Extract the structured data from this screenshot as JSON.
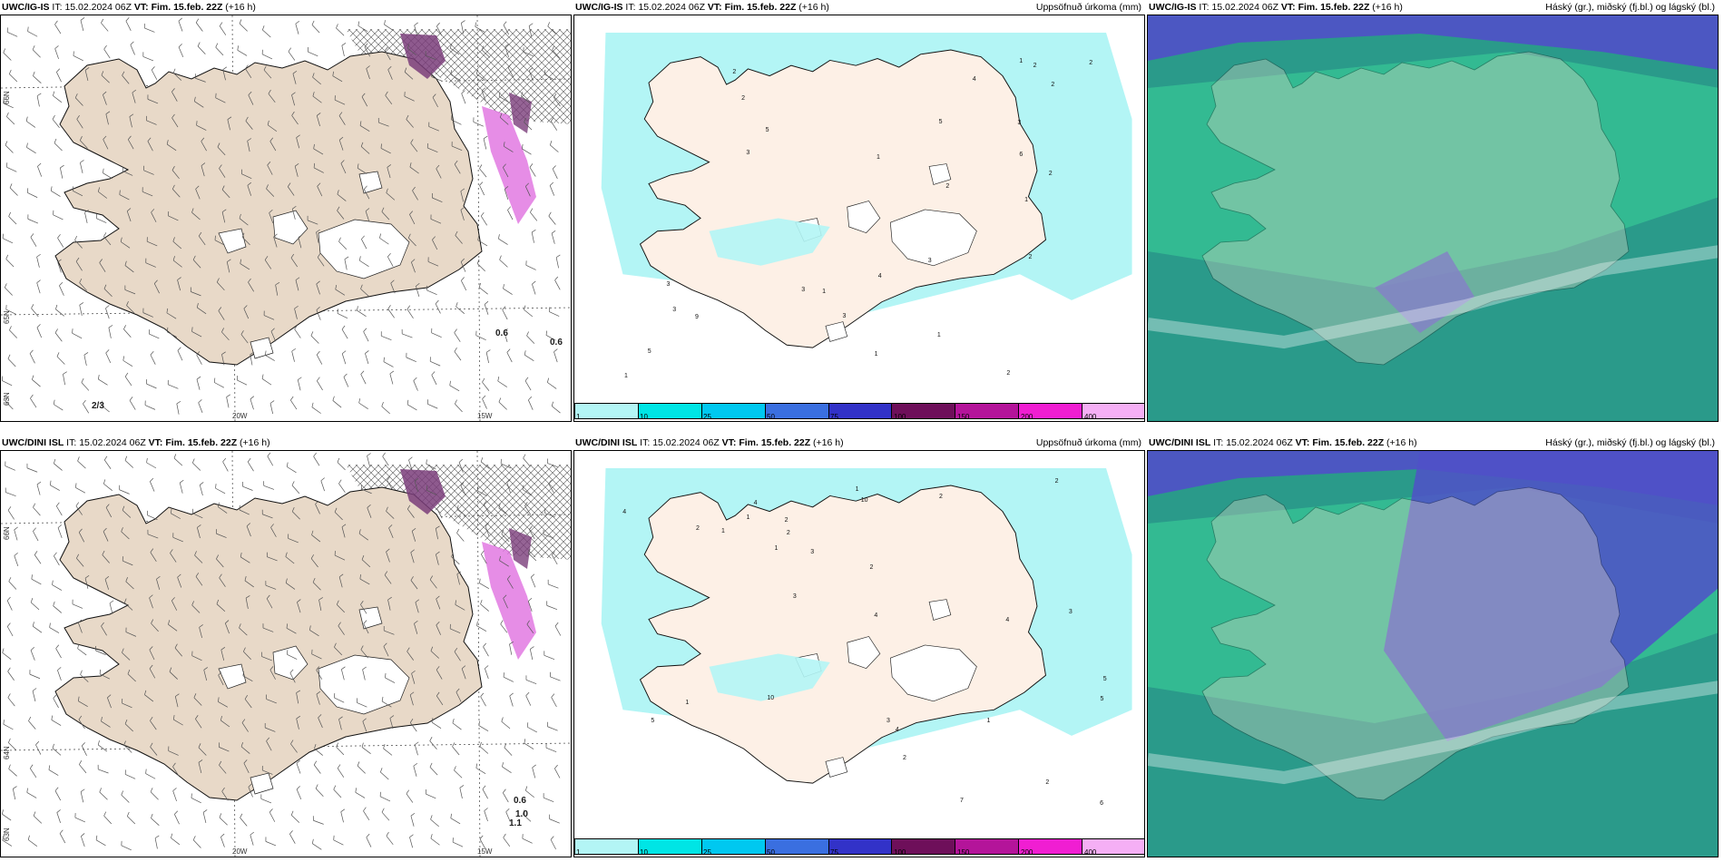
{
  "panels": [
    {
      "model": "UWC/IG-IS",
      "it_label": "IT:",
      "it_value": "15.02.2024 06Z",
      "vt_label": "VT:",
      "vt_value": "Fim. 15.feb. 22Z",
      "lead": "(+16 h)",
      "right_title": "",
      "type": "wind",
      "labels": [
        "0.6",
        "0.6",
        "2/3"
      ],
      "lon_ticks": [
        "20W",
        "15W"
      ],
      "lat_ticks": [
        "66N",
        "65N",
        "63N"
      ]
    },
    {
      "model": "UWC/IG-IS",
      "it_label": "IT:",
      "it_value": "15.02.2024 06Z",
      "vt_label": "VT:",
      "vt_value": "Fim. 15.feb. 22Z",
      "lead": "(+16 h)",
      "right_title": "Uppsöfnuð úrkoma (mm)",
      "type": "precip",
      "values": [
        "2",
        "2",
        "2",
        "2",
        "3",
        "1",
        "1",
        "2",
        "1",
        "3",
        "4",
        "5",
        "5",
        "3",
        "2",
        "1",
        "2",
        "3",
        "5",
        "4",
        "3",
        "2",
        "2",
        "3",
        "9",
        "3",
        "1",
        "1",
        "1",
        "6"
      ]
    },
    {
      "model": "UWC/IG-IS",
      "it_label": "IT:",
      "it_value": "15.02.2024 06Z",
      "vt_label": "VT:",
      "vt_value": "Fim. 15.feb. 22Z",
      "lead": "(+16 h)",
      "right_title": "Háský (gr.), miðský (fj.bl.) og lágský (bl.)",
      "type": "cloud"
    },
    {
      "model": "UWC/DINI ISL",
      "it_label": "IT:",
      "it_value": "15.02.2024 06Z",
      "vt_label": "VT:",
      "vt_value": "Fim. 15.feb. 22Z",
      "lead": "(+16 h)",
      "right_title": "",
      "type": "wind",
      "labels": [
        "0.6",
        "1.0",
        "1.1"
      ],
      "lon_ticks": [
        "20W",
        "15W"
      ],
      "lat_ticks": [
        "66N",
        "64N",
        "63N"
      ]
    },
    {
      "model": "UWC/DINI ISL",
      "it_label": "IT:",
      "it_value": "15.02.2024 06Z",
      "vt_label": "VT:",
      "vt_value": "Fim. 15.feb. 22Z",
      "lead": "(+16 h)",
      "right_title": "Uppsöfnuð úrkoma (mm)",
      "type": "precip",
      "values": [
        "1",
        "2",
        "2",
        "4",
        "10",
        "4",
        "1",
        "2",
        "1",
        "2",
        "3",
        "5",
        "6",
        "2",
        "1",
        "3",
        "4",
        "2",
        "1",
        "10",
        "7",
        "4",
        "3",
        "2",
        "5",
        "5",
        "2",
        "4",
        "3",
        "1"
      ]
    },
    {
      "model": "UWC/DINI ISL",
      "it_label": "IT:",
      "it_value": "15.02.2024 06Z",
      "vt_label": "VT:",
      "vt_value": "Fim. 15.feb. 22Z",
      "lead": "(+16 h)",
      "right_title": "Háský (gr.), miðský (fj.bl.) og lágský (bl.)",
      "type": "cloud"
    }
  ],
  "precip_legend": {
    "ticks": [
      "1",
      "10",
      "25",
      "50",
      "75",
      "100",
      "150",
      "200",
      "400"
    ],
    "colors": [
      "#b3f5f5",
      "#00e5e5",
      "#00c8f0",
      "#3a6fe0",
      "#3232c8",
      "#6e0f5a",
      "#b4149a",
      "#f01ed2",
      "#f5aff5"
    ]
  },
  "colors": {
    "land": "#e8d9c8",
    "land_precip": "#fdf0e6",
    "glacier": "#ffffff",
    "sea": "#ffffff",
    "precip_light": "#b3f5f5",
    "snow_purple": "#7a3d7a",
    "snow_pink": "#e070e0",
    "cloud_high": "#37c896",
    "cloud_mid": "#5050c8",
    "cloud_low": "#2a9a8a"
  }
}
